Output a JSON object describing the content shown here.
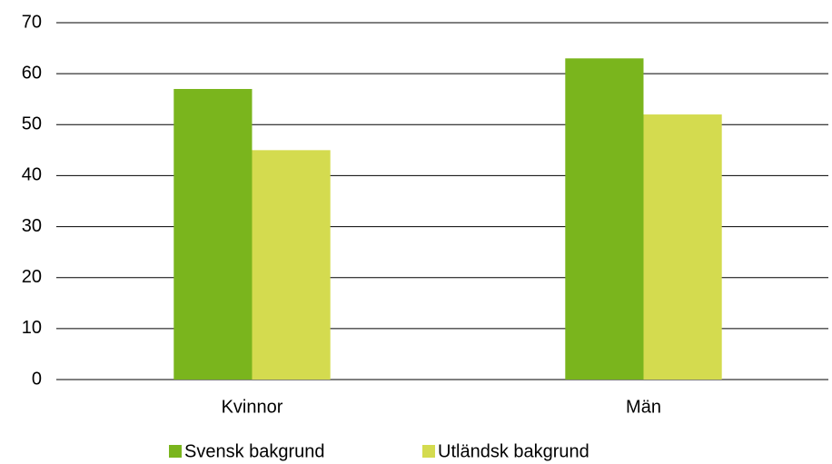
{
  "chart_data": {
    "type": "bar",
    "categories": [
      "Kvinnor",
      "Män"
    ],
    "series": [
      {
        "name": "Svensk bakgrund",
        "color": "#7ab51d",
        "values": [
          57,
          63
        ]
      },
      {
        "name": "Utländsk bakgrund",
        "color": "#d4db4f",
        "values": [
          45,
          52
        ]
      }
    ],
    "ylim": [
      0,
      70
    ],
    "yticks": [
      0,
      10,
      20,
      30,
      40,
      50,
      60,
      70
    ],
    "grid": true,
    "legend": "bottom"
  }
}
